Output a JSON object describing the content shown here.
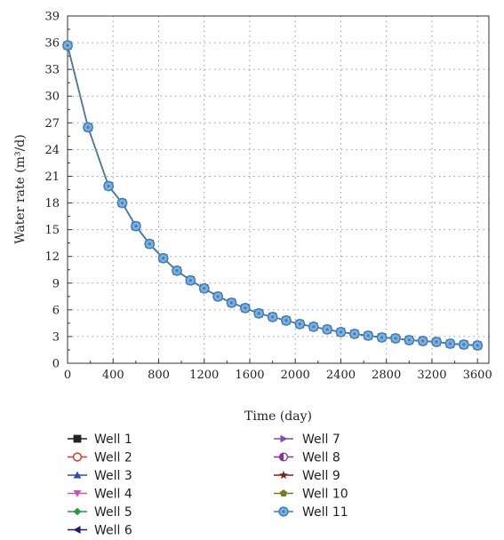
{
  "chart_data": {
    "type": "line",
    "xlabel": "Time (day)",
    "ylabel": "Water rate (m³/d)",
    "xlim": [
      0,
      3700
    ],
    "ylim": [
      0,
      39
    ],
    "x_ticks": [
      0,
      400,
      800,
      1200,
      1600,
      2000,
      2400,
      2800,
      3200,
      3600
    ],
    "y_ticks": [
      0,
      3,
      6,
      9,
      12,
      15,
      18,
      21,
      24,
      27,
      30,
      33,
      36,
      39
    ],
    "grid": true,
    "legend_position": "bottom",
    "x": [
      0,
      180,
      360,
      480,
      600,
      720,
      840,
      960,
      1080,
      1200,
      1320,
      1440,
      1560,
      1680,
      1800,
      1920,
      2040,
      2160,
      2280,
      2400,
      2520,
      2640,
      2760,
      2880,
      3000,
      3120,
      3240,
      3360,
      3480,
      3600
    ],
    "series": [
      {
        "name": "Well 1",
        "color": "#222222",
        "marker": "square",
        "values": [
          35.7,
          26.5,
          19.9,
          18.0,
          15.4,
          13.4,
          11.8,
          10.4,
          9.3,
          8.4,
          7.5,
          6.8,
          6.2,
          5.6,
          5.2,
          4.8,
          4.4,
          4.1,
          3.8,
          3.5,
          3.3,
          3.1,
          2.9,
          2.8,
          2.6,
          2.5,
          2.4,
          2.2,
          2.1,
          2.0
        ]
      },
      {
        "name": "Well 2",
        "color": "#e8342a",
        "marker": "circle-open",
        "values": [
          35.7,
          26.5,
          19.9,
          18.0,
          15.4,
          13.4,
          11.8,
          10.4,
          9.3,
          8.4,
          7.5,
          6.8,
          6.2,
          5.6,
          5.2,
          4.8,
          4.4,
          4.1,
          3.8,
          3.5,
          3.3,
          3.1,
          2.9,
          2.8,
          2.6,
          2.5,
          2.4,
          2.2,
          2.1,
          2.0
        ]
      },
      {
        "name": "Well 3",
        "color": "#2b4fa8",
        "marker": "triangle-up",
        "values": [
          35.7,
          26.5,
          19.9,
          18.0,
          15.4,
          13.4,
          11.8,
          10.4,
          9.3,
          8.4,
          7.5,
          6.8,
          6.2,
          5.6,
          5.2,
          4.8,
          4.4,
          4.1,
          3.8,
          3.5,
          3.3,
          3.1,
          2.9,
          2.8,
          2.6,
          2.5,
          2.4,
          2.2,
          2.1,
          2.0
        ]
      },
      {
        "name": "Well 4",
        "color": "#c457b8",
        "marker": "triangle-down",
        "values": [
          35.7,
          26.5,
          19.9,
          18.0,
          15.4,
          13.4,
          11.8,
          10.4,
          9.3,
          8.4,
          7.5,
          6.8,
          6.2,
          5.6,
          5.2,
          4.8,
          4.4,
          4.1,
          3.8,
          3.5,
          3.3,
          3.1,
          2.9,
          2.8,
          2.6,
          2.5,
          2.4,
          2.2,
          2.1,
          2.0
        ]
      },
      {
        "name": "Well 5",
        "color": "#1f9a48",
        "marker": "diamond",
        "values": [
          35.7,
          26.5,
          19.9,
          18.0,
          15.4,
          13.4,
          11.8,
          10.4,
          9.3,
          8.4,
          7.5,
          6.8,
          6.2,
          5.6,
          5.2,
          4.8,
          4.4,
          4.1,
          3.8,
          3.5,
          3.3,
          3.1,
          2.9,
          2.8,
          2.6,
          2.5,
          2.4,
          2.2,
          2.1,
          2.0
        ]
      },
      {
        "name": "Well 6",
        "color": "#1a1a6e",
        "marker": "triangle-left",
        "values": [
          35.7,
          26.5,
          19.9,
          18.0,
          15.4,
          13.4,
          11.8,
          10.4,
          9.3,
          8.4,
          7.5,
          6.8,
          6.2,
          5.6,
          5.2,
          4.8,
          4.4,
          4.1,
          3.8,
          3.5,
          3.3,
          3.1,
          2.9,
          2.8,
          2.6,
          2.5,
          2.4,
          2.2,
          2.1,
          2.0
        ]
      },
      {
        "name": "Well 7",
        "color": "#7b4fbf",
        "marker": "triangle-right",
        "values": [
          35.7,
          26.5,
          19.9,
          18.0,
          15.4,
          13.4,
          11.8,
          10.4,
          9.3,
          8.4,
          7.5,
          6.8,
          6.2,
          5.6,
          5.2,
          4.8,
          4.4,
          4.1,
          3.8,
          3.5,
          3.3,
          3.1,
          2.9,
          2.8,
          2.6,
          2.5,
          2.4,
          2.2,
          2.1,
          2.0
        ]
      },
      {
        "name": "Well 8",
        "color": "#8e2f9e",
        "marker": "circle-half",
        "values": [
          35.7,
          26.5,
          19.9,
          18.0,
          15.4,
          13.4,
          11.8,
          10.4,
          9.3,
          8.4,
          7.5,
          6.8,
          6.2,
          5.6,
          5.2,
          4.8,
          4.4,
          4.1,
          3.8,
          3.5,
          3.3,
          3.1,
          2.9,
          2.8,
          2.6,
          2.5,
          2.4,
          2.2,
          2.1,
          2.0
        ]
      },
      {
        "name": "Well 9",
        "color": "#7a1f1f",
        "marker": "star",
        "values": [
          35.7,
          26.5,
          19.9,
          18.0,
          15.4,
          13.4,
          11.8,
          10.4,
          9.3,
          8.4,
          7.5,
          6.8,
          6.2,
          5.6,
          5.2,
          4.8,
          4.4,
          4.1,
          3.8,
          3.5,
          3.3,
          3.1,
          2.9,
          2.8,
          2.6,
          2.5,
          2.4,
          2.2,
          2.1,
          2.0
        ]
      },
      {
        "name": "Well 10",
        "color": "#7c7a1e",
        "marker": "pentagon",
        "values": [
          35.7,
          26.5,
          19.9,
          18.0,
          15.4,
          13.4,
          11.8,
          10.4,
          9.3,
          8.4,
          7.5,
          6.8,
          6.2,
          5.6,
          5.2,
          4.8,
          4.4,
          4.1,
          3.8,
          3.5,
          3.3,
          3.1,
          2.9,
          2.8,
          2.6,
          2.5,
          2.4,
          2.2,
          2.1,
          2.0
        ]
      },
      {
        "name": "Well 11",
        "color": "#3a7fbf",
        "marker": "circle-dot",
        "values": [
          35.7,
          26.5,
          19.9,
          18.0,
          15.4,
          13.4,
          11.8,
          10.4,
          9.3,
          8.4,
          7.5,
          6.8,
          6.2,
          5.6,
          5.2,
          4.8,
          4.4,
          4.1,
          3.8,
          3.5,
          3.3,
          3.1,
          2.9,
          2.8,
          2.6,
          2.5,
          2.4,
          2.2,
          2.1,
          2.0
        ]
      }
    ]
  }
}
